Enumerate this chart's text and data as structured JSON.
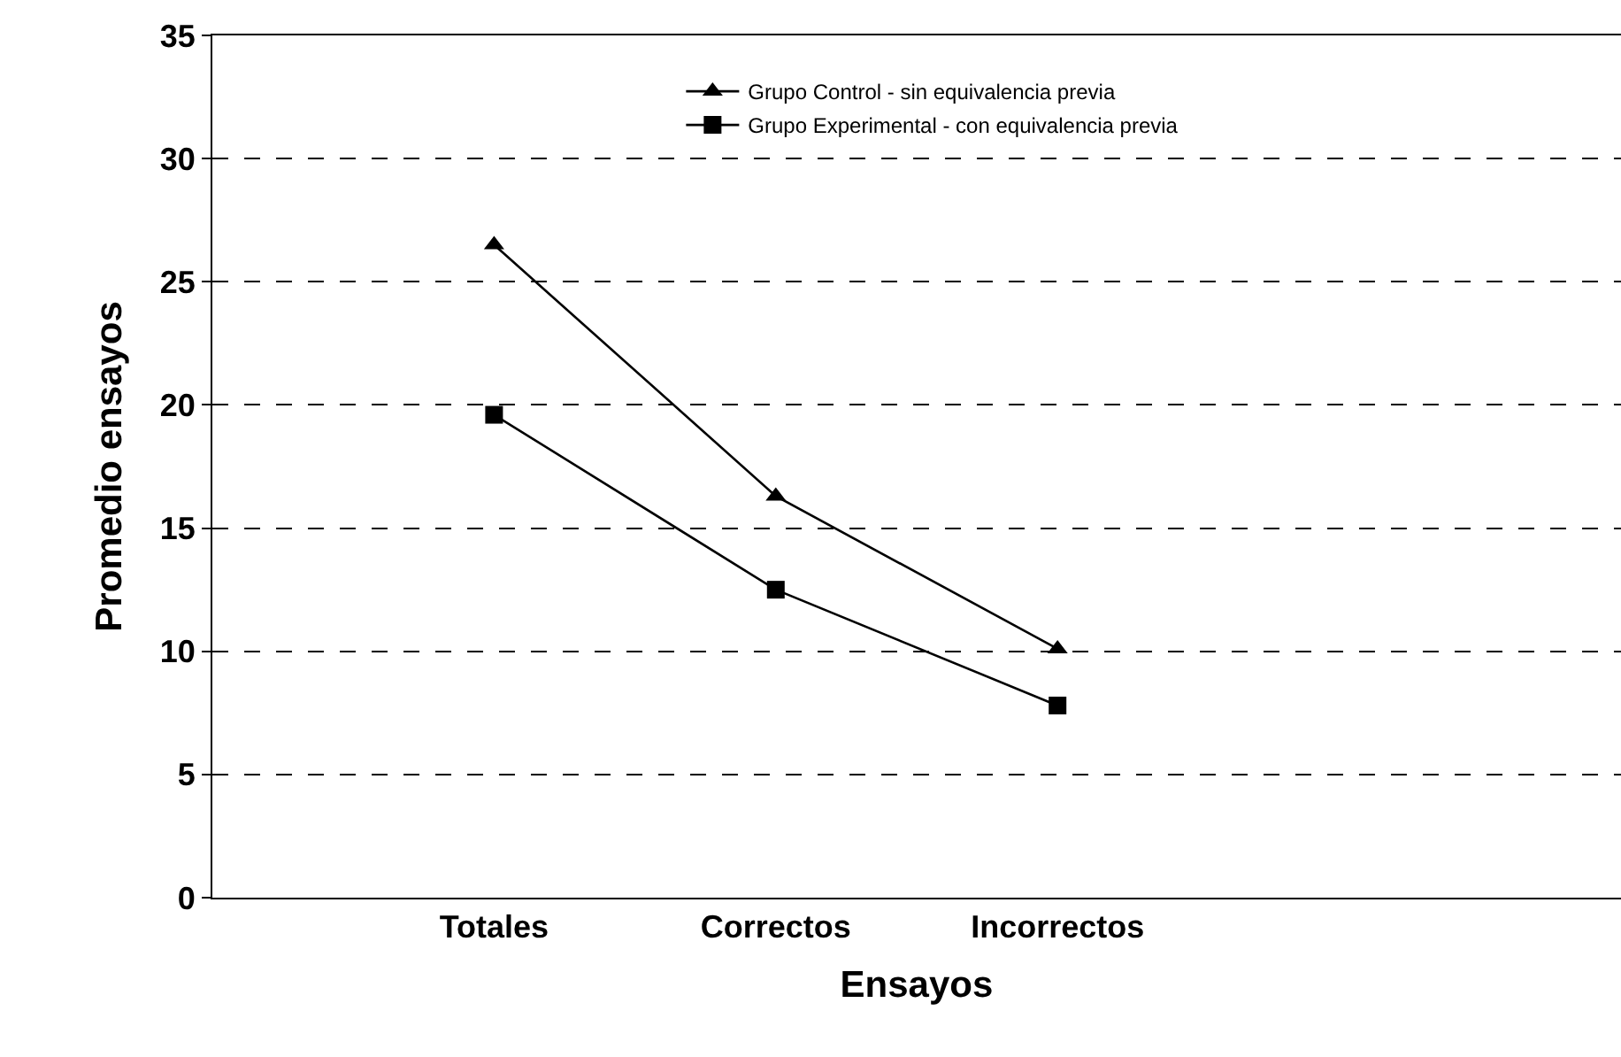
{
  "chart_data": {
    "type": "line",
    "xlabel": "Ensayos",
    "ylabel": "Promedio ensayos",
    "categories": [
      null,
      "Totales",
      "Correctos",
      "Incorrectos",
      null,
      null
    ],
    "series": [
      {
        "name": "Grupo Control - sin equivalencia previa",
        "color": "#000000",
        "marker": "triangle",
        "values": [
          null,
          26.5,
          16.3,
          10.1,
          null,
          null
        ]
      },
      {
        "name": "Grupo Experimental - con equivalencia previa",
        "color": "#000000",
        "marker": "square",
        "values": [
          null,
          19.6,
          12.5,
          7.8,
          null,
          null
        ]
      }
    ],
    "ylim": [
      0,
      35
    ],
    "yticks": [
      0,
      5,
      10,
      15,
      20,
      25,
      30,
      35
    ],
    "grid": "y",
    "line_style": "solid",
    "legend": "top"
  }
}
